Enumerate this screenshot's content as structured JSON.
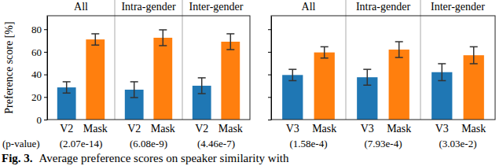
{
  "chart_data": [
    {
      "type": "bar",
      "ylabel": "Preference score [%]",
      "groups": [
        "All",
        "Intra-gender",
        "Inter-gender"
      ],
      "series": [
        {
          "name": "V2",
          "color": "#1f77b4",
          "values": [
            28.5,
            26.5,
            30
          ],
          "errors": [
            5,
            7,
            7
          ]
        },
        {
          "name": "Mask",
          "color": "#ff7f0e",
          "values": [
            71,
            72.5,
            69
          ],
          "errors": [
            5,
            7,
            7
          ]
        }
      ],
      "p_value_label": "(p-value)",
      "p_values": [
        "(2.07e-14)",
        "(6.08e-9)",
        "(4.46e-7)"
      ],
      "ylim": [
        0,
        92
      ],
      "yticks": [
        0,
        20,
        40,
        60,
        80
      ]
    },
    {
      "type": "bar",
      "groups": [
        "All",
        "Intra-gender",
        "Inter-gender"
      ],
      "series": [
        {
          "name": "V3",
          "color": "#1f77b4",
          "values": [
            39.5,
            37.5,
            42
          ],
          "errors": [
            5,
            7,
            7.5
          ]
        },
        {
          "name": "Mask",
          "color": "#ff7f0e",
          "values": [
            59.5,
            62,
            57
          ],
          "errors": [
            5,
            7,
            7.5
          ]
        }
      ],
      "p_values": [
        "(1.58e-4)",
        "(7.93e-4)",
        "(3.03e-2)"
      ],
      "ylim": [
        0,
        92
      ],
      "yticks": [
        0,
        20,
        40,
        60,
        80
      ],
      "tick_labels": "x"
    }
  ],
  "caption": {
    "label": "Fig. 3.",
    "text": "Average preference scores on speaker similarity with"
  }
}
